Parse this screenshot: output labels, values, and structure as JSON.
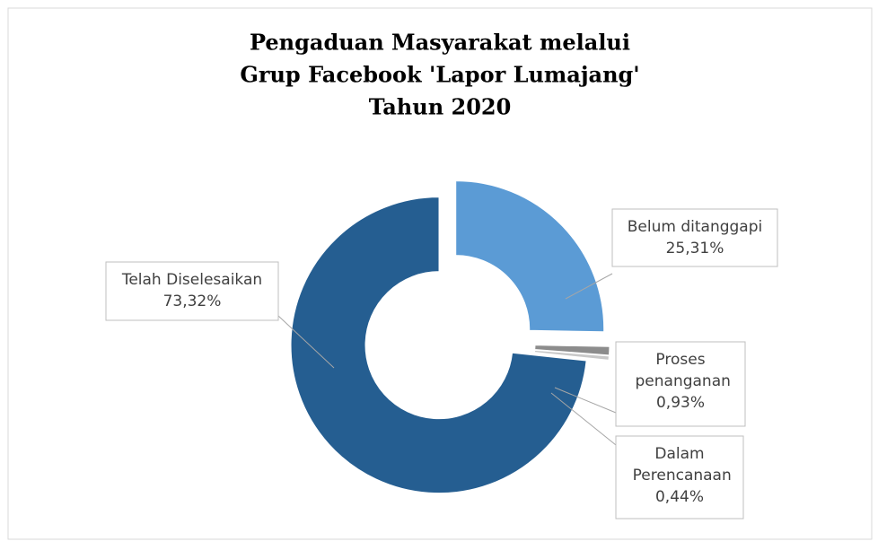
{
  "chart_data": {
    "type": "donut",
    "title": [
      "Pengaduan Masyarakat melalui",
      "Grup Facebook 'Lapor Lumajang'",
      "Tahun 2020"
    ],
    "categories": [
      "Belum ditanggapi",
      "Proses penanganan",
      "Dalam Perencanaan",
      "Telah Diselesaikan"
    ],
    "values": [
      25.31,
      0.93,
      0.44,
      73.32
    ],
    "value_labels": [
      "25,31%",
      "0,93%",
      "0,44%",
      "73,32%"
    ],
    "colors": [
      "#5b9bd5",
      "#8c8c8c",
      "#c8c8c8",
      "#255e91"
    ]
  }
}
